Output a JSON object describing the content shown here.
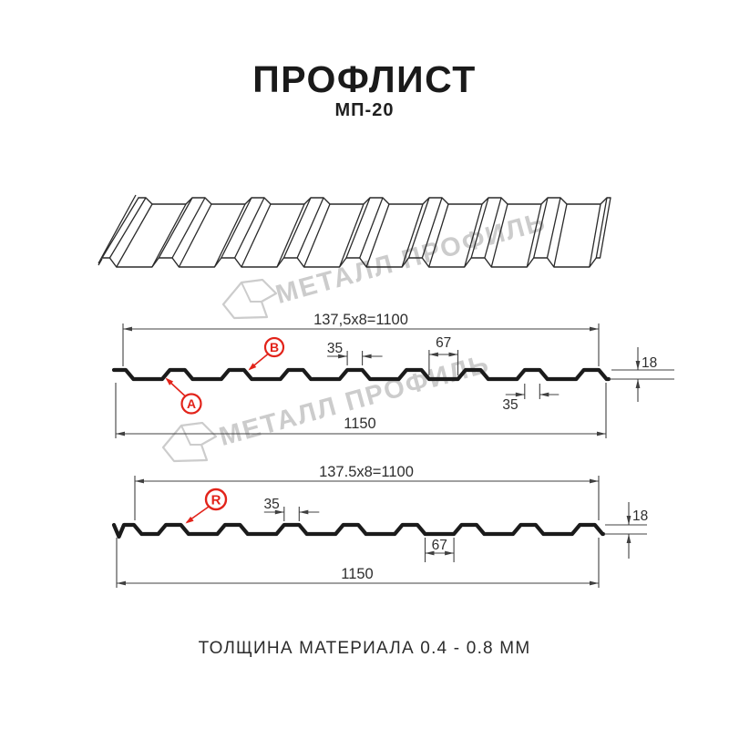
{
  "header": {
    "title": "ПРОФЛИСТ",
    "subtitle": "МП-20"
  },
  "watermark": {
    "text": "МЕТАЛЛ ПРОФИЛЬ"
  },
  "footer": {
    "thickness_note": "ТОЛЩИНА МАТЕРИАЛА 0.4 - 0.8 ММ"
  },
  "colors": {
    "accent_red": "#e2231a",
    "dim_line": "#404040",
    "dim_text": "#2e2e2e",
    "profile_line": "#1b1b1b",
    "sheet_line": "#2a2a2a",
    "watermark_gray": "#cccccc"
  },
  "diagram_b": {
    "marker_a": "A",
    "marker_b": "B",
    "dim_top": "137,5x8=1100",
    "dim_bottom": "1150",
    "dim_rib_top": "35",
    "dim_valley": "67",
    "dim_height": "18",
    "dim_rib_top_right": "35"
  },
  "diagram_r": {
    "marker_r": "R",
    "dim_top": "137.5x8=1100",
    "dim_bottom": "1150",
    "dim_rib_top": "35",
    "dim_valley": "67",
    "dim_height": "18"
  }
}
